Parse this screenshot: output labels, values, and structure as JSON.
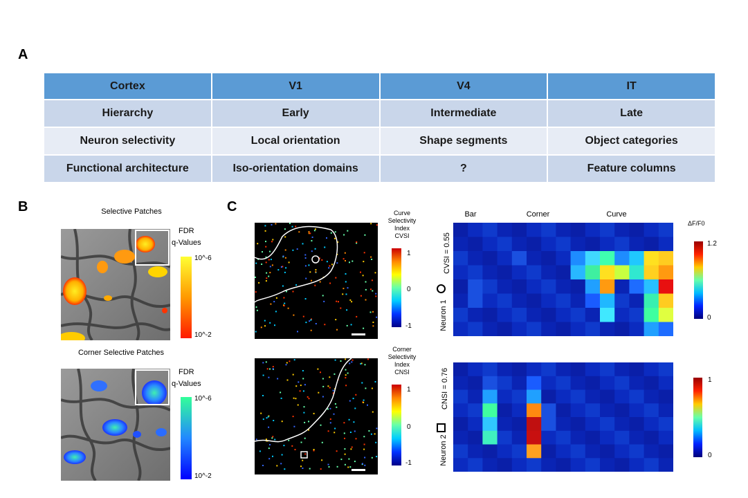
{
  "panels": {
    "a": "A",
    "b": "B",
    "c": "C"
  },
  "table": {
    "header": [
      "Cortex",
      "V1",
      "V4",
      "IT"
    ],
    "rows": [
      [
        "Hierarchy",
        "Early",
        "Intermediate",
        "Late"
      ],
      [
        "Neuron selectivity",
        "Local orientation",
        "Shape segments",
        "Object categories"
      ],
      [
        "Functional architecture",
        "Iso-orientation domains",
        "?",
        "Feature columns"
      ]
    ]
  },
  "panel_b": {
    "top_title": "Selective Patches",
    "bottom_title": "Corner Selective Patches",
    "fdr_line1": "FDR",
    "fdr_line2": "q-Values",
    "top_scale": {
      "max": "10^-6",
      "min": "10^-2",
      "colors": [
        "#ffff33",
        "#ff9900",
        "#ff1a00"
      ]
    },
    "bottom_scale": {
      "max": "10^-6",
      "min": "10^-2",
      "colors": [
        "#33ff99",
        "#2288ff",
        "#0000ff"
      ]
    }
  },
  "panel_c": {
    "cvsi_label": [
      "Curve",
      "Selectivity",
      "Index",
      "CVSI"
    ],
    "cnsi_label": [
      "Corner",
      "Selectivity",
      "Index",
      "CNSI"
    ],
    "scale_ticks": [
      "1",
      "0",
      "-1"
    ],
    "groups": [
      "Bar",
      "Corner",
      "Curve"
    ],
    "dff_label": "ΔF/F0",
    "neuron1_label": "Neuron 1",
    "cvsi_value": "CVSI = 0.55",
    "neuron1_scale": [
      "1.2",
      "0"
    ],
    "neuron2_label": "Neuron 2",
    "cnsi_value": "CNSI = 0.76",
    "neuron2_scale": [
      "1",
      "0"
    ]
  }
}
